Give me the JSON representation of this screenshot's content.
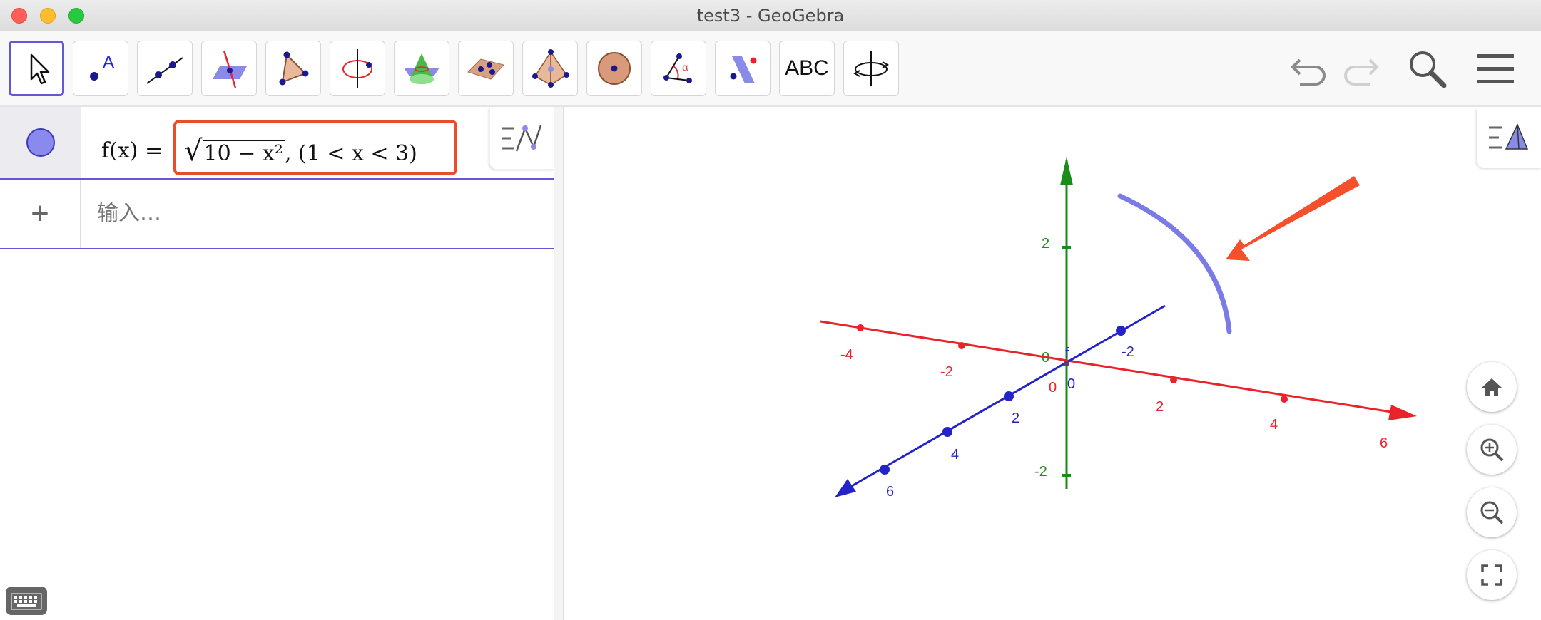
{
  "window": {
    "title": "test3 - GeoGebra"
  },
  "toolbar": {
    "tools": [
      {
        "name": "move-tool",
        "icon": "pointer-arrow-icon"
      },
      {
        "name": "point-tool",
        "icon": "point-icon",
        "glyph": "A"
      },
      {
        "name": "line-tool",
        "icon": "line-through-points-icon"
      },
      {
        "name": "intersect-tool",
        "icon": "plane-line-intersect-icon"
      },
      {
        "name": "polygon-tool",
        "icon": "triangle-icon"
      },
      {
        "name": "circle-axis-tool",
        "icon": "circle-around-axis-icon"
      },
      {
        "name": "cone-tool",
        "icon": "cone-icon"
      },
      {
        "name": "plane-tool",
        "icon": "plane-three-points-icon"
      },
      {
        "name": "pyramid-tool",
        "icon": "pyramid-icon"
      },
      {
        "name": "sphere-tool",
        "icon": "sphere-icon"
      },
      {
        "name": "angle-tool",
        "icon": "angle-icon",
        "glyph": "α"
      },
      {
        "name": "reflect-tool",
        "icon": "reflect-about-plane-icon"
      },
      {
        "name": "text-tool",
        "icon": "text-icon",
        "label": "ABC"
      },
      {
        "name": "rotate-view-tool",
        "icon": "rotate-view-icon"
      }
    ],
    "right": [
      "undo-icon",
      "redo-icon",
      "search-icon",
      "menu-icon"
    ]
  },
  "algebra": {
    "expr_lhs": "f(x) =",
    "expr_sqrt_arg": "10 − x²",
    "expr_condition": ",    (1 < x < 3)",
    "input_placeholder": "输入…",
    "add_symbol": "+"
  },
  "graphics": {
    "x_axis_labels": [
      "-4",
      "-2",
      "0",
      "2",
      "4",
      "6"
    ],
    "y_axis_labels": [
      "-2",
      "0",
      "2",
      "4",
      "6"
    ],
    "z_axis_labels": [
      "2",
      "0",
      "-2"
    ],
    "curve_label": "f",
    "colors": {
      "x_axis": "#e8232a",
      "y_axis": "#2323c8",
      "z_axis": "#1a8c1a",
      "curve": "#7b7be8",
      "annotation_arrow": "#f4502c"
    },
    "buttons": [
      "home-icon",
      "zoom-in-icon",
      "zoom-out-icon",
      "fullscreen-icon"
    ]
  }
}
